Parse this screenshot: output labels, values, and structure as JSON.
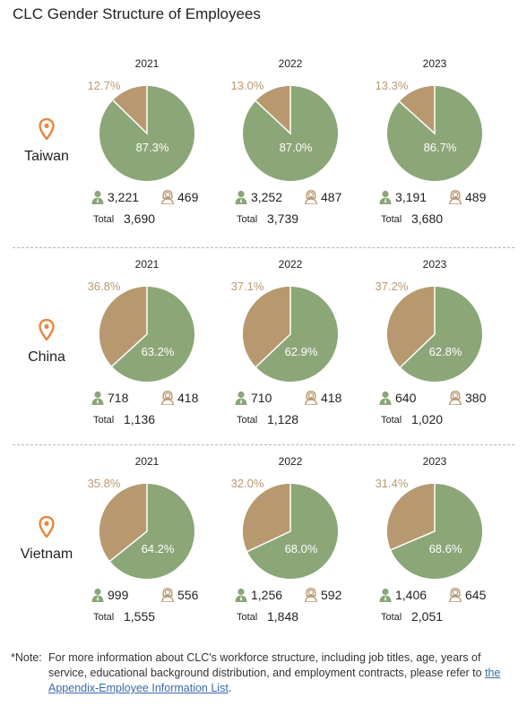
{
  "title": "CLC Gender Structure of Employees",
  "icons": {
    "location": "map-pin-icon",
    "male": "male-employee-icon",
    "female": "female-employee-icon"
  },
  "colors": {
    "male": "#8ba677",
    "female": "#b8996f",
    "location": "#e8853d"
  },
  "total_label": "Total",
  "chart_data": [
    {
      "type": "pie",
      "region": "Taiwan",
      "years": [
        {
          "year": "2021",
          "male_pct": "87.3%",
          "female_pct": "12.7%",
          "male_share": 87.3,
          "male": "3,221",
          "female": "469",
          "total": "3,690"
        },
        {
          "year": "2022",
          "male_pct": "87.0%",
          "female_pct": "13.0%",
          "male_share": 87.0,
          "male": "3,252",
          "female": "487",
          "total": "3,739"
        },
        {
          "year": "2023",
          "male_pct": "86.7%",
          "female_pct": "13.3%",
          "male_share": 86.7,
          "male": "3,191",
          "female": "489",
          "total": "3,680"
        }
      ]
    },
    {
      "type": "pie",
      "region": "China",
      "years": [
        {
          "year": "2021",
          "male_pct": "63.2%",
          "female_pct": "36.8%",
          "male_share": 63.2,
          "male": "718",
          "female": "418",
          "total": "1,136"
        },
        {
          "year": "2022",
          "male_pct": "62.9%",
          "female_pct": "37.1%",
          "male_share": 62.9,
          "male": "710",
          "female": "418",
          "total": "1,128"
        },
        {
          "year": "2023",
          "male_pct": "62.8%",
          "female_pct": "37.2%",
          "male_share": 62.8,
          "male": "640",
          "female": "380",
          "total": "1,020"
        }
      ]
    },
    {
      "type": "pie",
      "region": "Vietnam",
      "years": [
        {
          "year": "2021",
          "male_pct": "64.2%",
          "female_pct": "35.8%",
          "male_share": 64.2,
          "male": "999",
          "female": "556",
          "total": "1,555"
        },
        {
          "year": "2022",
          "male_pct": "68.0%",
          "female_pct": "32.0%",
          "male_share": 68.0,
          "male": "1,256",
          "female": "592",
          "total": "1,848"
        },
        {
          "year": "2023",
          "male_pct": "68.6%",
          "female_pct": "31.4%",
          "male_share": 68.6,
          "male": "1,406",
          "female": "645",
          "total": "2,051"
        }
      ]
    }
  ],
  "note": {
    "label": "*Note:",
    "text": "For more information about CLC's workforce structure, including job titles, age, years of service, educational background distribution, and employment contracts, please refer to ",
    "link": "the Appendix-Employee Information List",
    "end": "."
  }
}
